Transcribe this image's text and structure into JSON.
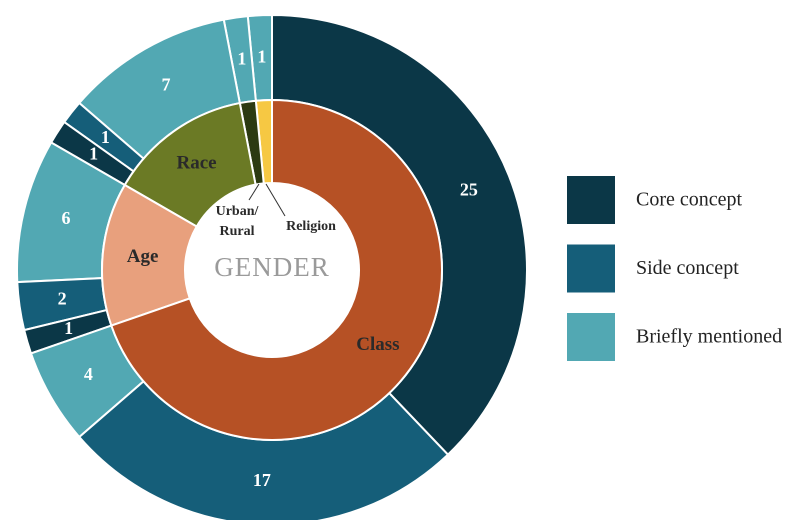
{
  "chart_data": {
    "type": "sunburst",
    "center_label": "GENDER",
    "inner": {
      "labels": [
        "Class",
        "Age",
        "Race",
        "Urban/ Rural",
        "Religion"
      ],
      "values": [
        46,
        9,
        9,
        1,
        1
      ],
      "colors": [
        "#b65125",
        "#e8a07d",
        "#6b7a25",
        "#2c3a12",
        "#f6c843"
      ]
    },
    "series": [
      {
        "name": "Core concept",
        "color": "#0b3747",
        "values": [
          25,
          1,
          1,
          null,
          null
        ]
      },
      {
        "name": "Side concept",
        "color": "#155e79",
        "values": [
          17,
          2,
          1,
          null,
          null
        ]
      },
      {
        "name": "Briefly mentioned",
        "color": "#52a8b3",
        "values": [
          4,
          6,
          7,
          1,
          1
        ]
      }
    ]
  }
}
